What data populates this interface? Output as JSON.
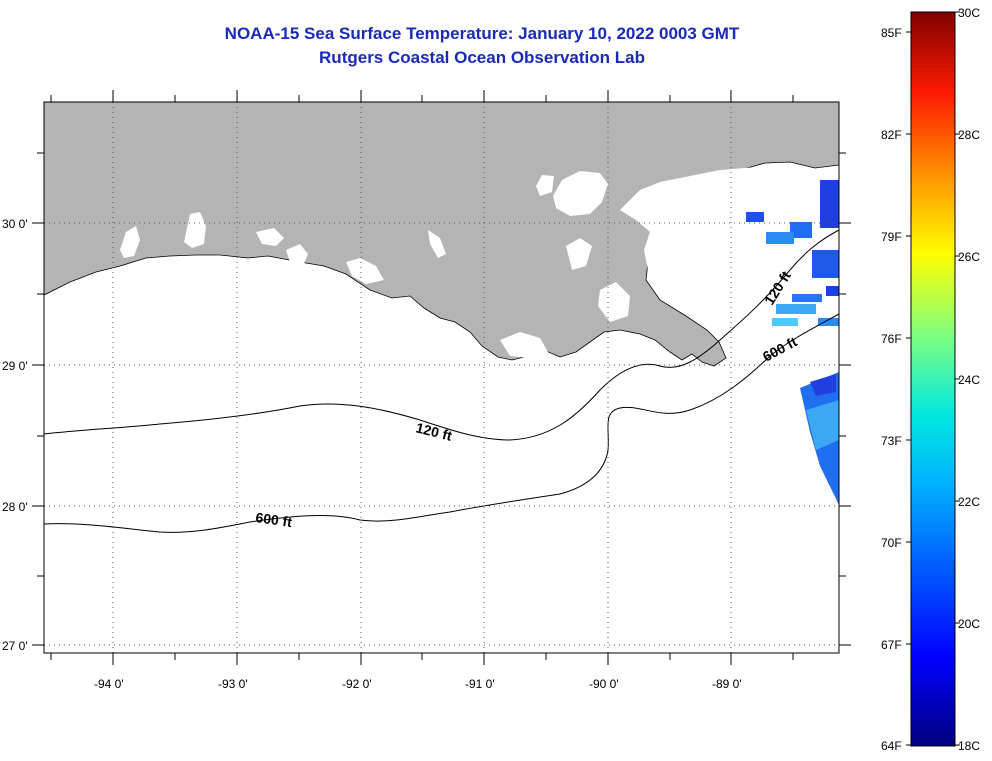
{
  "title": "NOAA-15 Sea Surface Temperature:  January 10, 2022 0003 GMT",
  "subtitle": "Rutgers Coastal Ocean Observation Lab",
  "lon_labels": [
    "-94 0'",
    "-93 0'",
    "-92 0'",
    "-91 0'",
    "-90 0'",
    "-89 0'"
  ],
  "lat_labels": [
    "30 0'",
    "29 0'",
    "28 0'",
    "27 0'"
  ],
  "contours": {
    "shelf_120_west": "120 ft",
    "shelf_600_west": "600 ft",
    "shelf_120_east": "120 ft",
    "shelf_600_east": "600 ft"
  },
  "colorbar": {
    "f_labels": [
      "85F",
      "82F",
      "79F",
      "76F",
      "73F",
      "70F",
      "67F",
      "64F"
    ],
    "c_labels": [
      "30C",
      "28C",
      "26C",
      "24C",
      "22C",
      "20C",
      "18C"
    ],
    "range_c": [
      18,
      30
    ],
    "range_f": [
      64,
      86
    ]
  },
  "colors": {
    "title": "#1a2ab8",
    "land": "#b4b4b4",
    "water_nodata": "#ffffff",
    "sst_observed": "#1f6ff0"
  }
}
